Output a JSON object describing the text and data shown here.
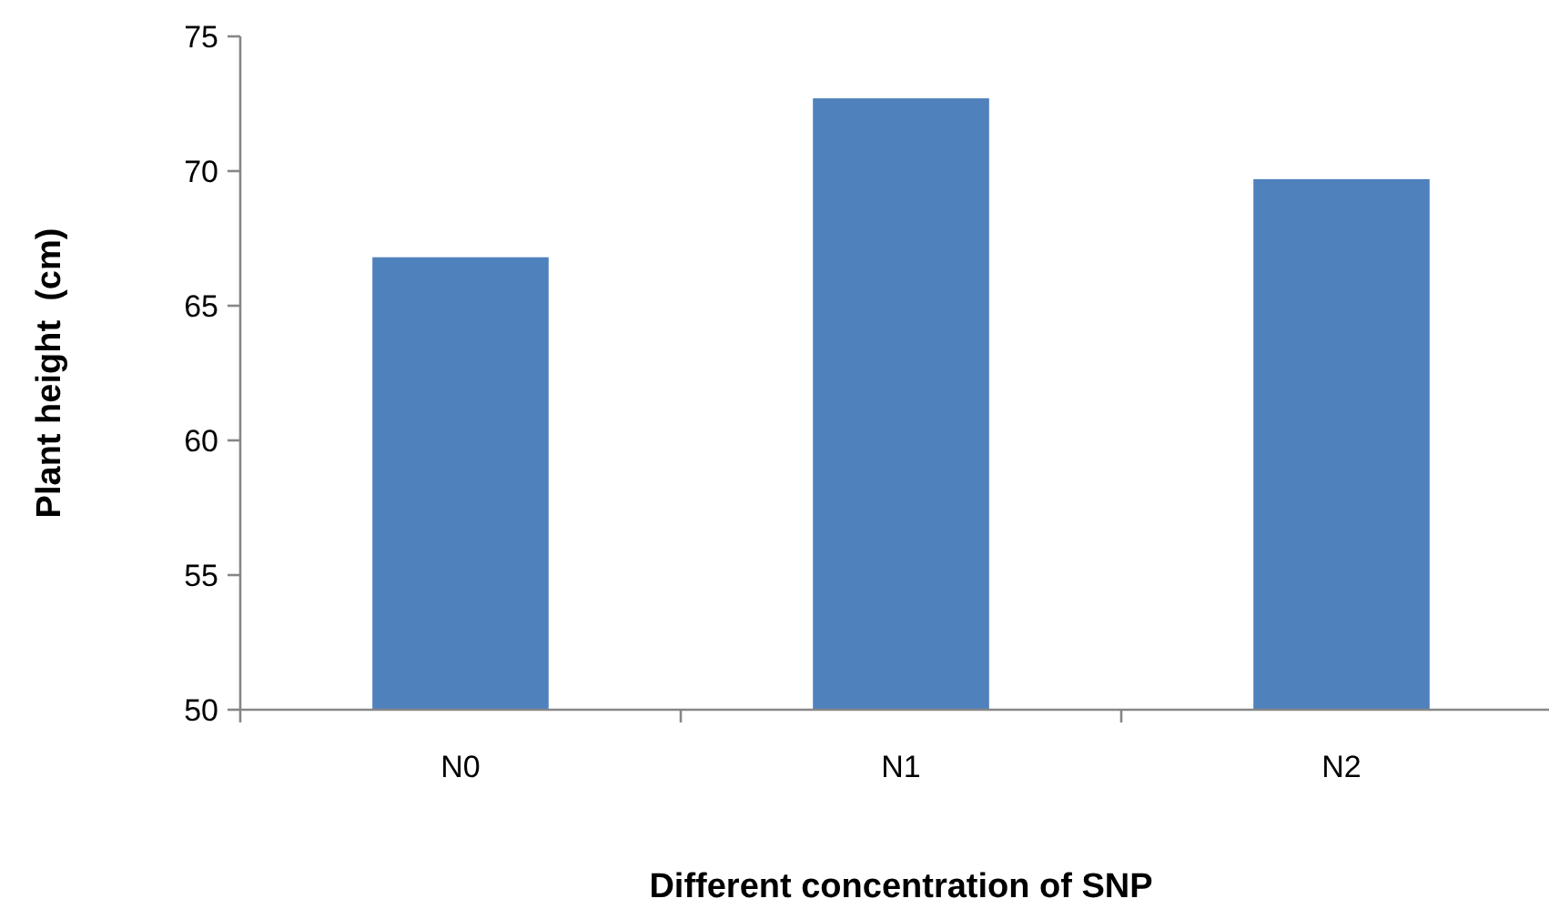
{
  "chart_data": {
    "type": "bar",
    "xlabel": "Different concentration of SNP",
    "ylabel": "Plant height  (cm)",
    "categories": [
      "N0",
      "N1",
      "N2"
    ],
    "values": [
      66.8,
      72.7,
      69.7
    ],
    "color": "#4f81bd",
    "ylim": [
      50,
      75
    ],
    "yticks": [
      50,
      55,
      60,
      65,
      70,
      75
    ],
    "grid": false
  }
}
